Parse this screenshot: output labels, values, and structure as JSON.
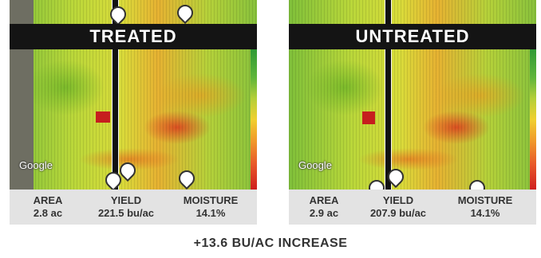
{
  "treated": {
    "label": "TREATED",
    "map_logo": "Google",
    "stats": [
      {
        "label": "AREA",
        "value": "2.8 ac"
      },
      {
        "label": "YIELD",
        "value": "221.5 bu/ac"
      },
      {
        "label": "MOISTURE",
        "value": "14.1%"
      }
    ]
  },
  "untreated": {
    "label": "UNTREATED",
    "map_logo": "Google",
    "stats": [
      {
        "label": "AREA",
        "value": "2.9 ac"
      },
      {
        "label": "YIELD",
        "value": "207.9 bu/ac"
      },
      {
        "label": "MOISTURE",
        "value": "14.1%"
      }
    ]
  },
  "footer": {
    "text": "+13.6 BU/AC INCREASE"
  },
  "colors": {
    "banner": "#141414",
    "stats_bg": "#e3e3e3",
    "text": "#333333"
  }
}
